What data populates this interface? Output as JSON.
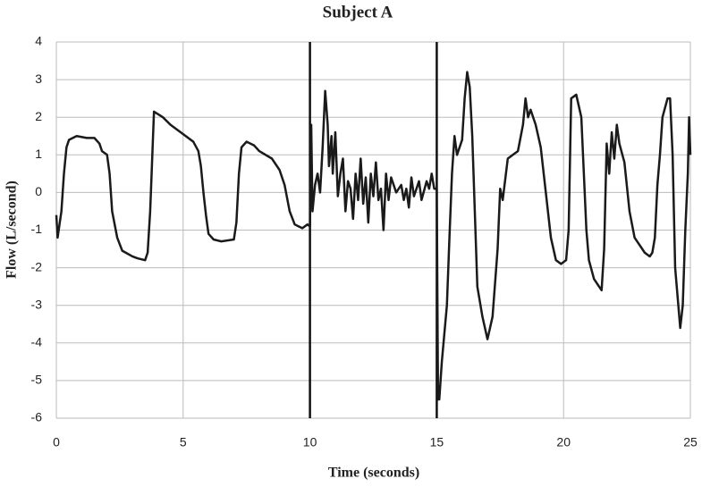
{
  "chart_data": {
    "type": "line",
    "title": "Subject A",
    "xlabel": "Time (seconds)",
    "ylabel": "Flow (L/second)",
    "xlim": [
      0,
      25
    ],
    "ylim": [
      -6,
      4
    ],
    "xticks": [
      0,
      5,
      10,
      15,
      20,
      25
    ],
    "yticks": [
      -6,
      -5,
      -4,
      -3,
      -2,
      -1,
      0,
      1,
      2,
      3,
      4
    ],
    "grid": true,
    "color": "#1a1a1a",
    "vlines": [
      10,
      15
    ],
    "x": [
      0,
      0.05,
      0.2,
      0.3,
      0.4,
      0.5,
      0.8,
      1.2,
      1.5,
      1.7,
      1.8,
      2.0,
      2.1,
      2.2,
      2.4,
      2.6,
      3.0,
      3.2,
      3.5,
      3.6,
      3.7,
      3.85,
      4.2,
      4.5,
      5.0,
      5.4,
      5.6,
      5.7,
      5.8,
      5.9,
      6.0,
      6.2,
      6.5,
      7.0,
      7.1,
      7.2,
      7.3,
      7.5,
      7.8,
      8.0,
      8.5,
      8.8,
      9.0,
      9.2,
      9.4,
      9.7,
      9.9,
      10.0,
      10.05,
      10.1,
      10.2,
      10.3,
      10.4,
      10.5,
      10.6,
      10.7,
      10.75,
      10.85,
      10.9,
      11.0,
      11.1,
      11.2,
      11.3,
      11.4,
      11.5,
      11.6,
      11.7,
      11.8,
      11.9,
      12.0,
      12.1,
      12.2,
      12.3,
      12.4,
      12.5,
      12.6,
      12.7,
      12.8,
      12.9,
      13.0,
      13.1,
      13.2,
      13.4,
      13.6,
      13.7,
      13.8,
      13.9,
      14.0,
      14.1,
      14.3,
      14.4,
      14.6,
      14.7,
      14.8,
      14.9,
      15.0,
      15.05,
      15.1,
      15.2,
      15.4,
      15.5,
      15.6,
      15.7,
      15.8,
      15.9,
      16.0,
      16.1,
      16.2,
      16.3,
      16.4,
      16.5,
      16.6,
      16.8,
      17.0,
      17.2,
      17.4,
      17.5,
      17.6,
      17.8,
      18.0,
      18.2,
      18.4,
      18.5,
      18.6,
      18.7,
      18.9,
      19.1,
      19.3,
      19.5,
      19.7,
      19.9,
      20.1,
      20.2,
      20.3,
      20.5,
      20.6,
      20.7,
      20.8,
      20.9,
      21.0,
      21.2,
      21.4,
      21.5,
      21.6,
      21.7,
      21.8,
      21.9,
      22.0,
      22.1,
      22.2,
      22.4,
      22.6,
      22.8,
      23.0,
      23.2,
      23.4,
      23.5,
      23.6,
      23.7,
      23.8,
      23.9,
      24.1,
      24.2,
      24.3,
      24.4,
      24.6,
      24.7,
      24.8,
      24.9,
      24.95,
      25.0
    ],
    "values": [
      -0.6,
      -1.2,
      -0.5,
      0.5,
      1.2,
      1.4,
      1.5,
      1.45,
      1.45,
      1.3,
      1.1,
      1.0,
      0.5,
      -0.5,
      -1.2,
      -1.55,
      -1.7,
      -1.75,
      -1.8,
      -1.6,
      -0.5,
      2.15,
      2.0,
      1.8,
      1.55,
      1.35,
      1.1,
      0.7,
      0,
      -0.6,
      -1.1,
      -1.25,
      -1.3,
      -1.25,
      -0.8,
      0.5,
      1.2,
      1.35,
      1.25,
      1.1,
      0.9,
      0.6,
      0.2,
      -0.5,
      -0.85,
      -0.95,
      -0.85,
      -0.9,
      1.8,
      -0.5,
      0.2,
      0.5,
      0,
      1.2,
      2.7,
      1.8,
      0.7,
      1.5,
      0.5,
      1.6,
      -0.1,
      0.5,
      0.9,
      -0.5,
      0.3,
      0.1,
      -0.7,
      0.5,
      -0.2,
      0.9,
      -0.3,
      0.4,
      -0.8,
      0.5,
      -0.1,
      0.8,
      -0.2,
      0.1,
      -1.0,
      0.5,
      -0.2,
      0.4,
      0.0,
      0.2,
      -0.2,
      0.1,
      -0.4,
      0.4,
      -0.1,
      0.3,
      -0.2,
      0.3,
      0.1,
      0.5,
      0.1,
      0.1,
      -5.5,
      -5.5,
      -4.5,
      -3,
      -1.2,
      0.5,
      1.5,
      1.0,
      1.2,
      1.4,
      2.5,
      3.2,
      2.8,
      1.5,
      -0.5,
      -2.5,
      -3.3,
      -3.9,
      -3.3,
      -1.5,
      0.1,
      -0.2,
      0.9,
      1.0,
      1.1,
      1.8,
      2.5,
      2.0,
      2.2,
      1.8,
      1.2,
      0,
      -1.2,
      -1.8,
      -1.9,
      -1.8,
      -1.0,
      2.5,
      2.6,
      2.3,
      2.0,
      0.5,
      -1.0,
      -1.8,
      -2.3,
      -2.5,
      -2.6,
      -1.5,
      1.3,
      0.5,
      1.6,
      0.9,
      1.8,
      1.3,
      0.8,
      -0.5,
      -1.2,
      -1.4,
      -1.6,
      -1.7,
      -1.6,
      -1.2,
      0.2,
      1.0,
      2.0,
      2.5,
      2.5,
      1.0,
      -2.0,
      -3.6,
      -3.0,
      -1.0,
      0.5,
      2.0,
      1.0
    ]
  }
}
